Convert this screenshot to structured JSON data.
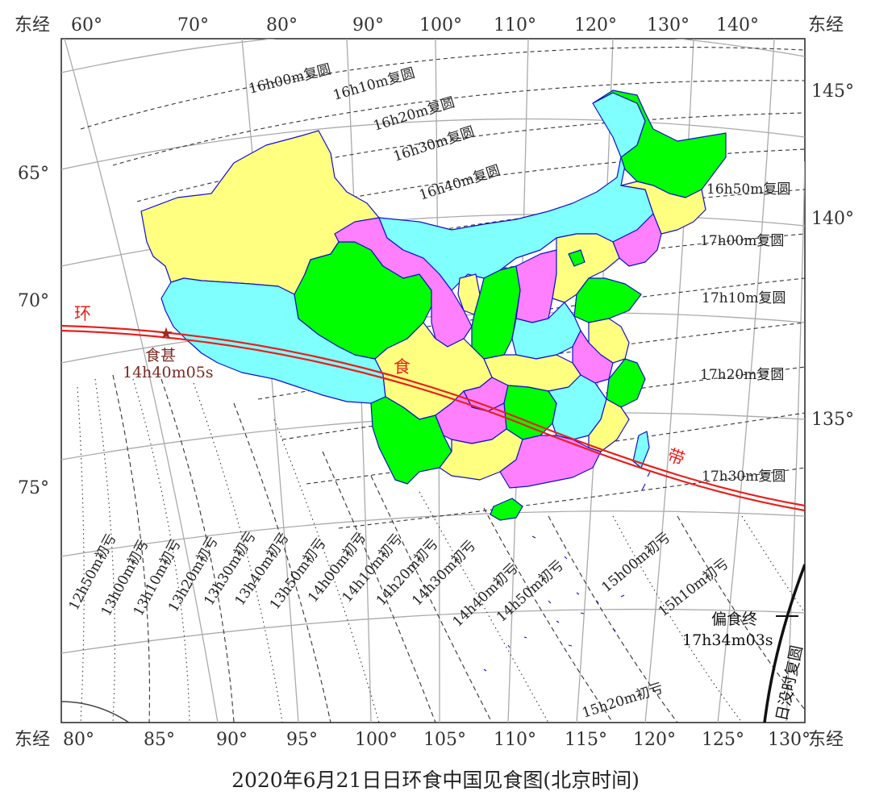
{
  "map": {
    "caption": "2020年6月21日日环食中国见食图(北京时间)",
    "colors": {
      "yellow": "#ffff80",
      "cyan": "#80ffff",
      "magenta": "#ff80ff",
      "green": "#00ff00",
      "border": "#1010cc",
      "path": "#e8201c",
      "grid": "#aaaaaa"
    },
    "top_axis": {
      "east_label": "东经",
      "east_label_right": "东经",
      "ticks": [
        "60°",
        "70°",
        "80°",
        "90°",
        "100°",
        "110°",
        "120°",
        "130°",
        "140°"
      ]
    },
    "bottom_axis": {
      "east_label": "东经",
      "east_label_right": "东经",
      "ticks": [
        "80°",
        "85°",
        "90°",
        "95°",
        "100°",
        "105°",
        "110°",
        "115°",
        "120°",
        "125°",
        "130°"
      ]
    },
    "left_axis": {
      "ticks": [
        "65°",
        "70°",
        "75°"
      ]
    },
    "right_axis": {
      "ticks": [
        "145°",
        "140°",
        "135°"
      ]
    },
    "fuyuan_labels": [
      "16h00m复圆",
      "16h10m复圆",
      "16h20m复圆",
      "16h30m复圆",
      "16h40m复圆",
      "16h50m复圆",
      "17h00m复圆",
      "17h10m复圆",
      "17h20m复圆",
      "17h30m复圆"
    ],
    "chukui_labels": [
      "12h50m初亏",
      "13h00m初亏",
      "13h10m初亏",
      "13h20m初亏",
      "13h30m初亏",
      "13h40m初亏",
      "13h50m初亏",
      "14h00m初亏",
      "14h10m初亏",
      "14h20m初亏",
      "14h30m初亏",
      "14h40m初亏",
      "14h50m初亏",
      "15h00m初亏",
      "15h10m初亏",
      "15h20m初亏"
    ],
    "annular_band": {
      "chars": [
        "环",
        "食",
        "带"
      ]
    },
    "max_eclipse": {
      "label": "食甚",
      "time": "14h40m05s"
    },
    "partial_end": {
      "label": "偏食终",
      "time": "17h34m03s"
    },
    "sunset_label": "日没时复圆"
  }
}
